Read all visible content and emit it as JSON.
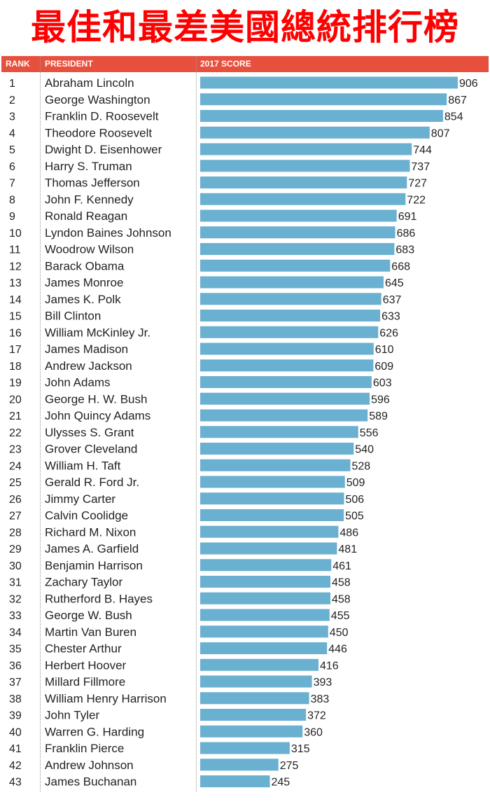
{
  "title": "最佳和最差美國總統排行榜",
  "colors": {
    "title": "#ff0000",
    "header": "#e8503e",
    "bar": "#6ab0d0"
  },
  "columns": {
    "rank": "RANK",
    "president": "PRESIDENT",
    "score": "2017 SCORE"
  },
  "chart_data": {
    "type": "bar",
    "orientation": "horizontal",
    "title": "最佳和最差美國總統排行榜",
    "xlabel": "2017 SCORE",
    "ylabel": "PRESIDENT",
    "xlim": [
      0,
      906
    ],
    "rows": [
      {
        "rank": "1",
        "name": "Abraham Lincoln",
        "value": 906
      },
      {
        "rank": "2",
        "name": "George Washington",
        "value": 867
      },
      {
        "rank": "3",
        "name": "Franklin D. Roosevelt",
        "value": 854
      },
      {
        "rank": "4",
        "name": "Theodore Roosevelt",
        "value": 807
      },
      {
        "rank": "5",
        "name": "Dwight D. Eisenhower",
        "value": 744
      },
      {
        "rank": "6",
        "name": "Harry S. Truman",
        "value": 737
      },
      {
        "rank": "7",
        "name": "Thomas Jefferson",
        "value": 727
      },
      {
        "rank": "8",
        "name": "John F. Kennedy",
        "value": 722
      },
      {
        "rank": "9",
        "name": "Ronald Reagan",
        "value": 691
      },
      {
        "rank": "10",
        "name": "Lyndon Baines Johnson",
        "value": 686
      },
      {
        "rank": "11",
        "name": "Woodrow Wilson",
        "value": 683
      },
      {
        "rank": "12",
        "name": "Barack Obama",
        "value": 668
      },
      {
        "rank": "13",
        "name": "James Monroe",
        "value": 645
      },
      {
        "rank": "14",
        "name": "James K. Polk",
        "value": 637
      },
      {
        "rank": "15",
        "name": "Bill Clinton",
        "value": 633
      },
      {
        "rank": "16",
        "name": "William McKinley Jr.",
        "value": 626
      },
      {
        "rank": "17",
        "name": "James Madison",
        "value": 610
      },
      {
        "rank": "18",
        "name": "Andrew Jackson",
        "value": 609
      },
      {
        "rank": "19",
        "name": "John Adams",
        "value": 603
      },
      {
        "rank": "20",
        "name": "George H. W. Bush",
        "value": 596
      },
      {
        "rank": "21",
        "name": "John Quincy Adams",
        "value": 589
      },
      {
        "rank": "22",
        "name": "Ulysses S. Grant",
        "value": 556
      },
      {
        "rank": "23",
        "name": "Grover Cleveland",
        "value": 540
      },
      {
        "rank": "24",
        "name": "William H. Taft",
        "value": 528
      },
      {
        "rank": "25",
        "name": "Gerald R. Ford Jr.",
        "value": 509
      },
      {
        "rank": "26",
        "name": "Jimmy Carter",
        "value": 506
      },
      {
        "rank": "27",
        "name": "Calvin Coolidge",
        "value": 505
      },
      {
        "rank": "28",
        "name": "Richard M. Nixon",
        "value": 486
      },
      {
        "rank": "29",
        "name": "James A. Garfield",
        "value": 481
      },
      {
        "rank": "30",
        "name": "Benjamin Harrison",
        "value": 461
      },
      {
        "rank": "31",
        "name": "Zachary Taylor",
        "value": 458
      },
      {
        "rank": "32",
        "name": "Rutherford B. Hayes",
        "value": 458
      },
      {
        "rank": "33",
        "name": "George W. Bush",
        "value": 455
      },
      {
        "rank": "34",
        "name": "Martin Van Buren",
        "value": 450
      },
      {
        "rank": "35",
        "name": "Chester Arthur",
        "value": 446
      },
      {
        "rank": "36",
        "name": "Herbert Hoover",
        "value": 416
      },
      {
        "rank": "37",
        "name": "Millard Fillmore",
        "value": 393
      },
      {
        "rank": "38",
        "name": "William Henry Harrison",
        "value": 383
      },
      {
        "rank": "39",
        "name": "John Tyler",
        "value": 372
      },
      {
        "rank": "40",
        "name": "Warren G. Harding",
        "value": 360
      },
      {
        "rank": "41",
        "name": "Franklin Pierce",
        "value": 315
      },
      {
        "rank": "42",
        "name": "Andrew Johnson",
        "value": 275
      },
      {
        "rank": "43",
        "name": "James Buchanan",
        "value": 245
      }
    ]
  }
}
